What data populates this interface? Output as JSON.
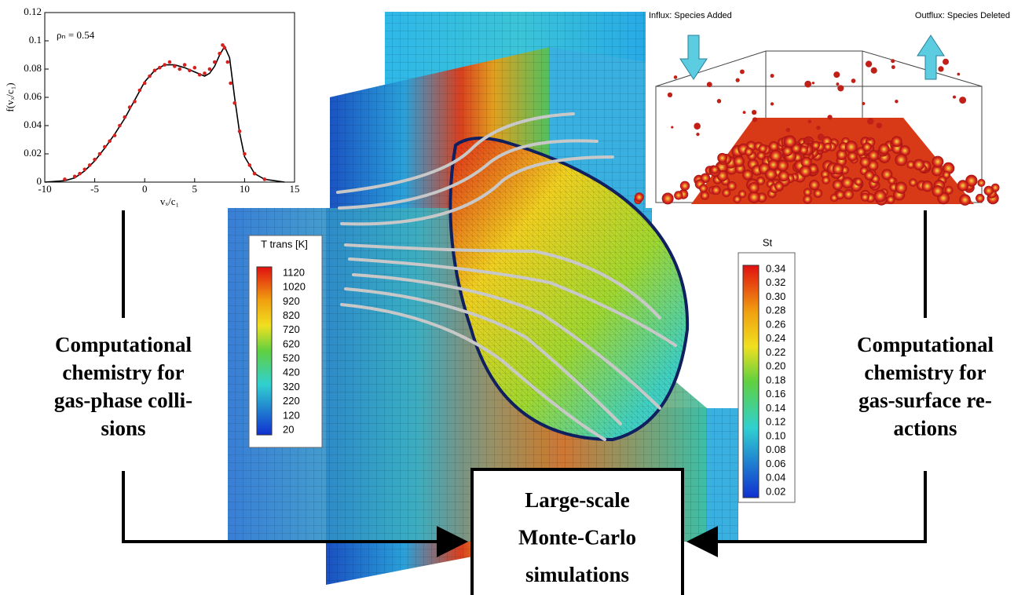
{
  "chart_data": {
    "type": "line",
    "xlabel": "vₓ/c₁",
    "ylabel": "f(vₓ/c₁)",
    "annotation": "ρₙ = 0.54",
    "xlim": [
      -10,
      15
    ],
    "ylim": [
      0,
      0.12
    ],
    "xticks": [
      -10,
      -5,
      0,
      5,
      10,
      15
    ],
    "yticks": [
      0,
      0.02,
      0.04,
      0.06,
      0.08,
      0.1,
      0.12
    ],
    "series": [
      {
        "color": "#000000",
        "x": [
          -10,
          -8,
          -7,
          -6,
          -5,
          -4,
          -3,
          -2,
          -1,
          0,
          1,
          2,
          3,
          4,
          5,
          6,
          6.5,
          7,
          7.5,
          8,
          8.5,
          9,
          9.5,
          10,
          11,
          12,
          13,
          14
        ],
        "values": [
          0,
          0.001,
          0.003,
          0.008,
          0.015,
          0.024,
          0.034,
          0.045,
          0.058,
          0.071,
          0.079,
          0.083,
          0.083,
          0.081,
          0.078,
          0.075,
          0.077,
          0.082,
          0.09,
          0.096,
          0.088,
          0.06,
          0.035,
          0.018,
          0.006,
          0.002,
          0.001,
          0
        ]
      },
      {
        "color": "#d62020",
        "marker": "dot",
        "x": [
          -8,
          -7,
          -6.5,
          -6,
          -5.5,
          -5,
          -4.5,
          -4,
          -3.5,
          -3,
          -2.5,
          -2,
          -1.5,
          -1,
          -0.5,
          0,
          0.5,
          1,
          1.5,
          2,
          2.5,
          3,
          3.5,
          4,
          4.5,
          5,
          5.5,
          6,
          6.5,
          7,
          7.5,
          7.8,
          8,
          8.3,
          8.6,
          9,
          9.5,
          10,
          10.5,
          11,
          12
        ],
        "values": [
          0.002,
          0.004,
          0.006,
          0.009,
          0.012,
          0.016,
          0.02,
          0.025,
          0.029,
          0.033,
          0.04,
          0.046,
          0.053,
          0.057,
          0.065,
          0.07,
          0.075,
          0.079,
          0.081,
          0.083,
          0.085,
          0.082,
          0.08,
          0.083,
          0.079,
          0.081,
          0.076,
          0.077,
          0.08,
          0.085,
          0.091,
          0.097,
          0.095,
          0.085,
          0.07,
          0.056,
          0.036,
          0.02,
          0.012,
          0.006,
          0.002
        ]
      }
    ]
  },
  "particle_panel": {
    "influx": "Influx: Species Added",
    "outflux": "Outflux: Species Deleted"
  },
  "colorbars": [
    {
      "title": "T trans [K]",
      "labels": [
        "1120",
        "1020",
        "920",
        "820",
        "720",
        "620",
        "520",
        "420",
        "320",
        "220",
        "120",
        "20"
      ]
    },
    {
      "title": "St",
      "labels": [
        "0.34",
        "0.32",
        "0.30",
        "0.28",
        "0.26",
        "0.24",
        "0.22",
        "0.20",
        "0.18",
        "0.16",
        "0.14",
        "0.12",
        "0.10",
        "0.08",
        "0.06",
        "0.04",
        "0.02"
      ]
    }
  ],
  "boxes": {
    "left": [
      "Computational",
      "chemistry for",
      "gas-phase colli-",
      "sions"
    ],
    "right": [
      "Computational",
      "chemistry for",
      "gas-surface re-",
      "actions"
    ],
    "center": [
      "Large-scale",
      "Monte-Carlo",
      "simulations"
    ]
  }
}
